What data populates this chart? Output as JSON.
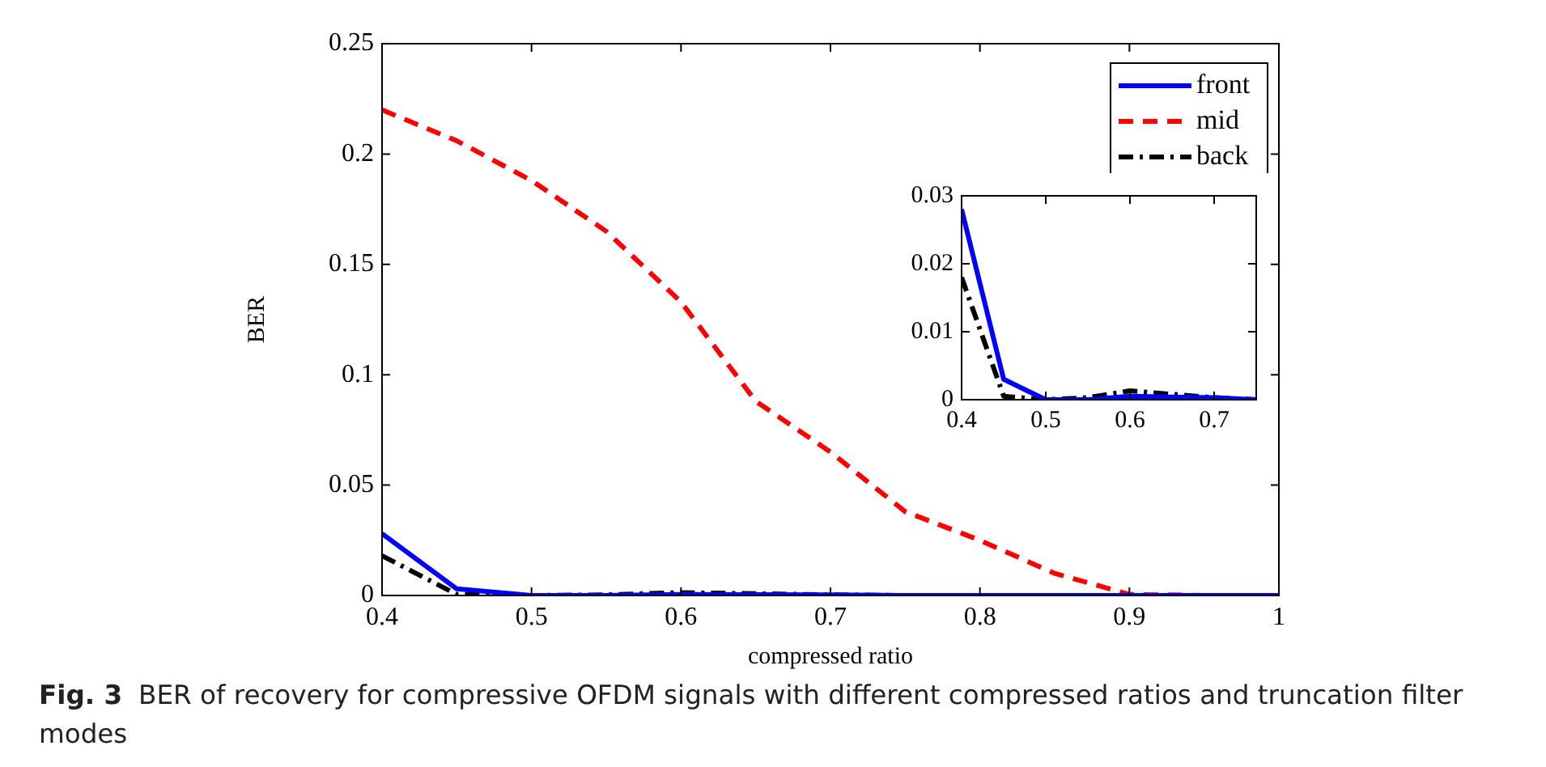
{
  "chart_data": [
    {
      "type": "line",
      "xlabel": "compressed ratio",
      "ylabel": "BER",
      "x": [
        0.4,
        0.45,
        0.5,
        0.55,
        0.6,
        0.65,
        0.7,
        0.75,
        0.8,
        0.85,
        0.9,
        0.95,
        1.0
      ],
      "series": [
        {
          "name": "front",
          "color": "#0000ff",
          "line_style": "solid",
          "values": [
            0.028,
            0.003,
            0,
            0,
            0.0005,
            0.0004,
            0.0003,
            0,
            0,
            0,
            0,
            0,
            0
          ]
        },
        {
          "name": "mid",
          "color": "#ff0000",
          "line_style": "dashed",
          "values": [
            0.22,
            0.206,
            0.188,
            0.165,
            0.133,
            0.088,
            0.065,
            0.038,
            0.025,
            0.01,
            0.0005,
            0,
            0
          ]
        },
        {
          "name": "back",
          "color": "#000000",
          "line_style": "dashdot",
          "values": [
            0.018,
            0.0005,
            0,
            0.0003,
            0.0013,
            0.0008,
            0.0003,
            0,
            0,
            0,
            0,
            0,
            0
          ]
        }
      ],
      "xlim": [
        0.4,
        1
      ],
      "xticks": [
        0.4,
        0.5,
        0.6,
        0.7,
        0.8,
        0.9,
        1
      ],
      "ylim": [
        0,
        0.25
      ],
      "yticks": [
        0,
        0.05,
        0.1,
        0.15,
        0.2,
        0.25
      ],
      "grid": false,
      "legend": "top right",
      "marker": "none",
      "annotations": [
        "Fig. 3",
        "BER of recovery for compressive OFDM signals with different compressed ratios and truncation filter modes"
      ]
    },
    {
      "type": "line",
      "x": [
        0.4,
        0.45,
        0.5,
        0.55,
        0.6,
        0.65,
        0.7,
        0.75
      ],
      "series": [
        {
          "color": "#0000ff",
          "line_style": "solid",
          "values": [
            0.028,
            0.003,
            0,
            0,
            0.0005,
            0.0004,
            0.0003,
            0
          ]
        },
        {
          "color": "#000000",
          "line_style": "dashdot",
          "values": [
            0.018,
            0.0005,
            0,
            0.0003,
            0.0013,
            0.0008,
            0.0003,
            0
          ]
        }
      ],
      "xlim": [
        0.4,
        0.75
      ],
      "xticks": [
        0.4,
        0.5,
        0.6,
        0.7
      ],
      "ylim": [
        0,
        0.03
      ],
      "yticks": [
        0,
        0.01,
        0.02,
        0.03
      ],
      "grid": false,
      "legend": false,
      "marker": "none"
    }
  ]
}
